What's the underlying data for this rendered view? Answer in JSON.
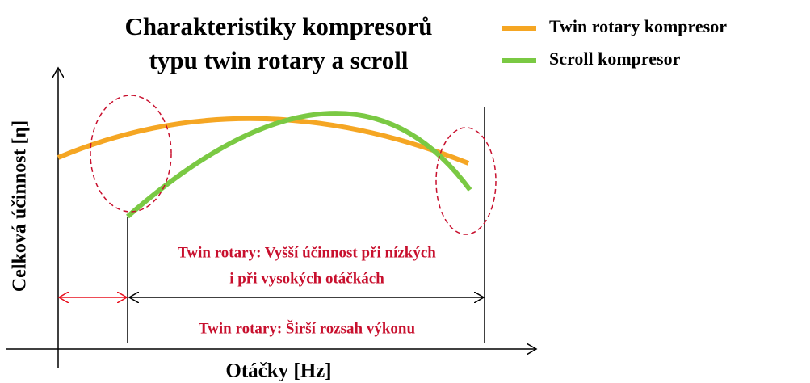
{
  "title": [
    "Charakteristiky kompresorů",
    "typu twin rotary a scroll"
  ],
  "legend": [
    "Twin rotary kompresor",
    "Scroll kompresor"
  ],
  "y_axis_label": "Celková účinnost [η]",
  "x_axis_label": "Otáčky [Hz]",
  "annotations": {
    "efficiency": [
      "Twin rotary: Vyšší účinnost při nízkých",
      "i při vysokých otáčkách"
    ],
    "range": "Twin rotary: Širší rozsah výkonu"
  }
}
